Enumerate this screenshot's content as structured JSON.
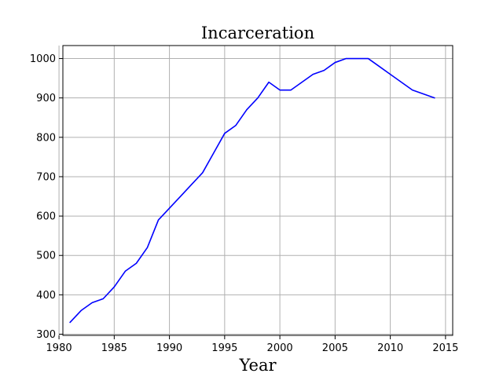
{
  "chart_data": {
    "type": "line",
    "title": "Incarceration",
    "xlabel": "Year",
    "ylabel": "",
    "xlim": [
      1980.35,
      2015.65
    ],
    "ylim": [
      297,
      1033
    ],
    "xticks": [
      1980,
      1985,
      1990,
      1995,
      2000,
      2005,
      2010,
      2015
    ],
    "yticks": [
      300,
      400,
      500,
      600,
      700,
      800,
      900,
      1000
    ],
    "grid": true,
    "legend": "none",
    "series": [
      {
        "color": "#0000ff",
        "x": [
          1981,
          1982,
          1983,
          1984,
          1985,
          1986,
          1987,
          1988,
          1989,
          1990,
          1991,
          1992,
          1993,
          1994,
          1995,
          1996,
          1997,
          1998,
          1999,
          2000,
          2001,
          2002,
          2003,
          2004,
          2005,
          2006,
          2007,
          2008,
          2009,
          2010,
          2011,
          2012,
          2013,
          2014
        ],
        "values": [
          330,
          360,
          380,
          390,
          420,
          460,
          480,
          520,
          590,
          620,
          650,
          680,
          710,
          760,
          810,
          830,
          870,
          900,
          940,
          920,
          920,
          940,
          960,
          970,
          990,
          1000,
          1000,
          1000,
          980,
          960,
          940,
          920,
          910,
          900
        ]
      }
    ]
  }
}
